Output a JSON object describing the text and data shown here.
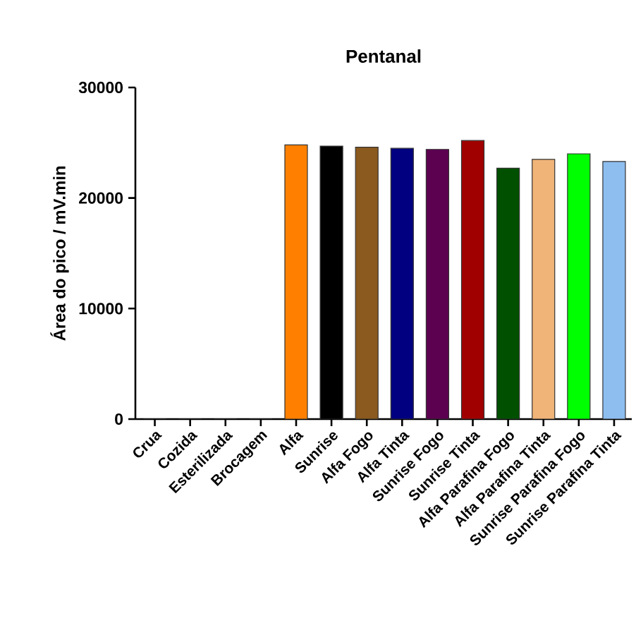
{
  "chart_data": {
    "type": "bar",
    "title": "Pentanal",
    "ylabel": "Área do pico / mV.min",
    "categories": [
      "Crua",
      "Cozida",
      "Esterilizada",
      "Brocagem",
      "Alfa",
      "Sunrise",
      "Alfa Fogo",
      "Alfa Tinta",
      "Sunrise Fogo",
      "Sunrise Tinta",
      "Alfa Parafina Fogo",
      "Alfa Parafina Tinta",
      "Sunrise Parafina Fogo",
      "Sunrise Parafina Tinta"
    ],
    "values": [
      0,
      0,
      0,
      0,
      24800,
      24700,
      24600,
      24500,
      24400,
      25200,
      22700,
      23500,
      24000,
      23300
    ],
    "colors": [
      "#ff8000",
      "#ff8000",
      "#ff8000",
      "#ff8000",
      "#ff8000",
      "#000000",
      "#8b5a1e",
      "#000080",
      "#5c0050",
      "#a00000",
      "#005000",
      "#f0b478",
      "#00ff00",
      "#8ebef0"
    ],
    "ylim": [
      0,
      30000
    ],
    "yticks": [
      0,
      10000,
      20000,
      30000
    ],
    "grid": false
  }
}
